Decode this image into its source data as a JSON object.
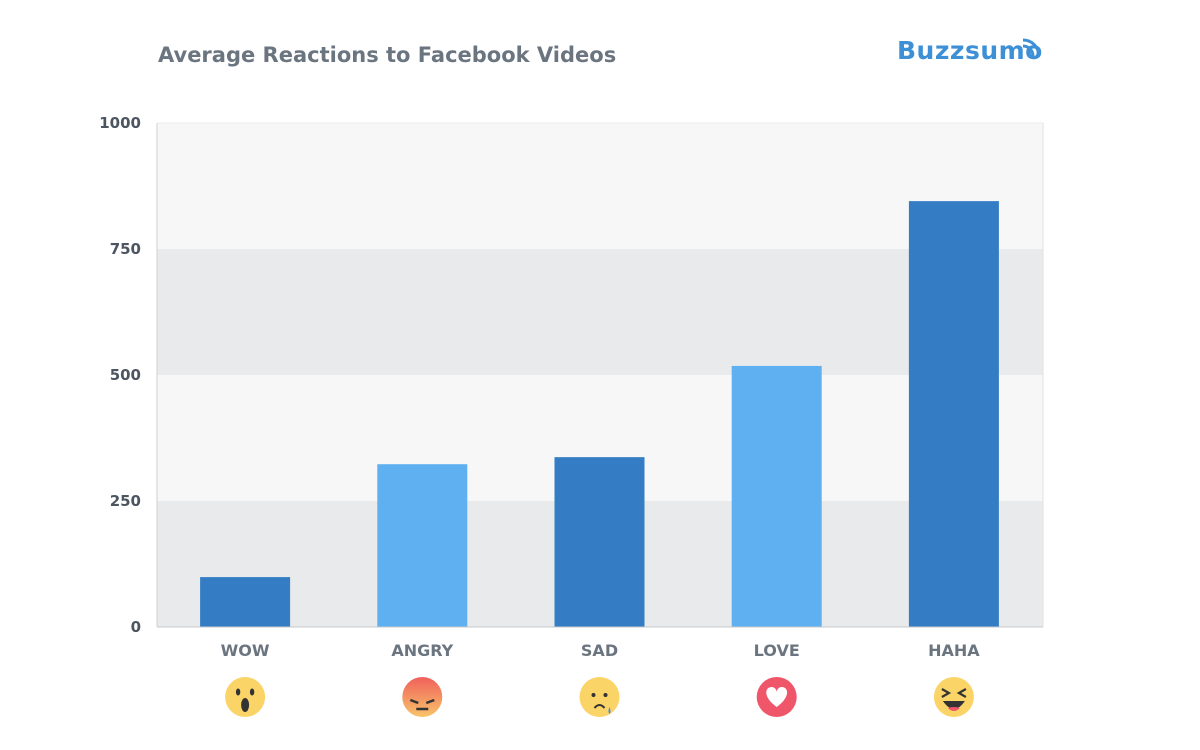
{
  "chart_data": {
    "type": "bar",
    "title": "Average Reactions to Facebook Videos",
    "categories": [
      "WOW",
      "ANGRY",
      "SAD",
      "LOVE",
      "HAHA"
    ],
    "values": [
      99,
      323,
      337,
      518,
      845
    ],
    "category_icons": [
      "wow-emoji-icon",
      "angry-emoji-icon",
      "sad-emoji-icon",
      "love-emoji-icon",
      "haha-emoji-icon"
    ],
    "bar_colors": [
      "#347dc4",
      "#5fb0f0",
      "#347dc4",
      "#5fb0f0",
      "#347dc4"
    ],
    "yticks": [
      "0",
      "250",
      "500",
      "750",
      "1000"
    ],
    "ylim": [
      0,
      1000
    ],
    "xlabel": "",
    "ylabel": "",
    "grid": "alternating horizontal bands",
    "legend": "none"
  },
  "brand": {
    "logo_text": "Buzzsumo",
    "color": "#3d8fd6"
  }
}
